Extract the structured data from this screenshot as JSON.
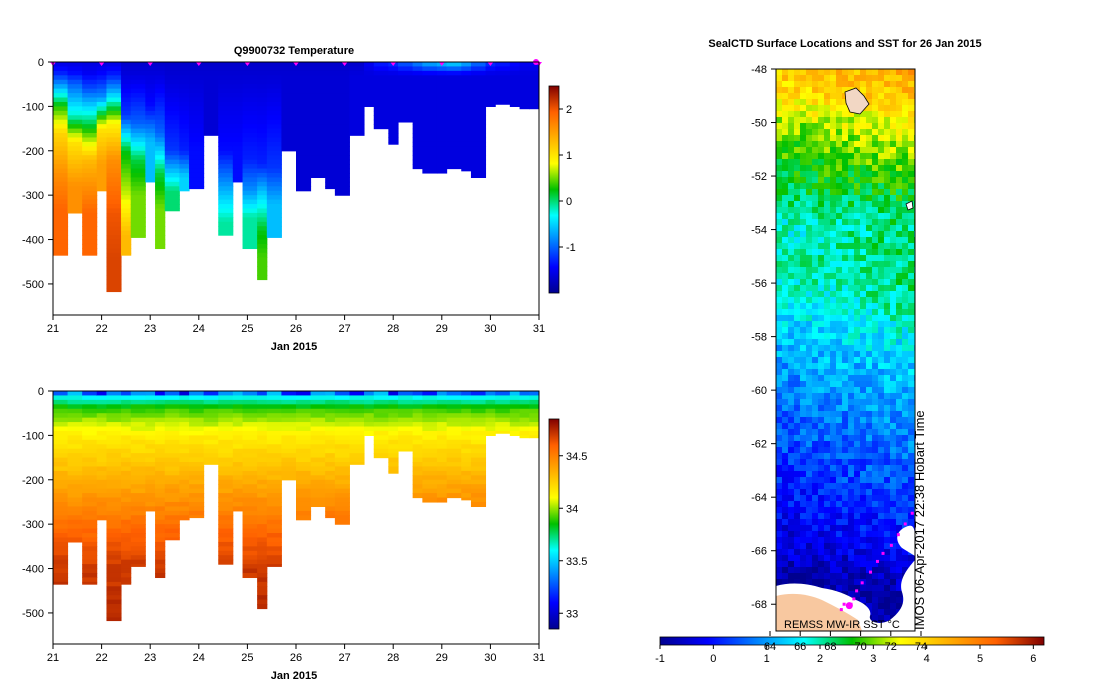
{
  "chart_data": [
    {
      "id": "temperature",
      "type": "heatmap",
      "title": "Q9900732  Temperature",
      "xlabel": "Jan 2015",
      "xticks": [
        "21",
        "22",
        "23",
        "24",
        "25",
        "26",
        "27",
        "28",
        "29",
        "30",
        "31"
      ],
      "xlim": [
        21,
        31
      ],
      "yticks": [
        "0",
        "-100",
        "-200",
        "-300",
        "-400",
        "-500"
      ],
      "ylim": [
        -570,
        0
      ],
      "colorbar": {
        "ticks": [
          "2",
          "1",
          "0",
          "-1"
        ],
        "range": [
          -2,
          2.5
        ]
      },
      "profiles": [
        {
          "x": 21.0,
          "depth": 435,
          "layers": [
            [
              0,
              -1.6
            ],
            [
              25,
              -1.3
            ],
            [
              50,
              -0.8
            ],
            [
              100,
              0.3
            ],
            [
              160,
              1.1
            ],
            [
              250,
              1.6
            ],
            [
              330,
              1.9
            ]
          ]
        },
        {
          "x": 21.3,
          "depth": 340,
          "layers": [
            [
              0,
              -1.6
            ],
            [
              25,
              -1.4
            ],
            [
              50,
              -1.0
            ],
            [
              120,
              -0.2
            ],
            [
              180,
              1.0
            ],
            [
              280,
              1.6
            ]
          ]
        },
        {
          "x": 21.6,
          "depth": 435,
          "layers": [
            [
              0,
              -1.6
            ],
            [
              25,
              -1.5
            ],
            [
              60,
              -1.1
            ],
            [
              140,
              0.1
            ],
            [
              220,
              1.3
            ],
            [
              340,
              1.9
            ]
          ]
        },
        {
          "x": 21.9,
          "depth": 290,
          "layers": [
            [
              0,
              -1.6
            ],
            [
              30,
              -1.4
            ],
            [
              80,
              -0.8
            ],
            [
              150,
              1.0
            ],
            [
              230,
              1.5
            ]
          ]
        },
        {
          "x": 22.1,
          "depth": 517,
          "layers": [
            [
              0,
              -1.6
            ],
            [
              30,
              -1.3
            ],
            [
              70,
              -0.6
            ],
            [
              140,
              0.9
            ],
            [
              220,
              1.6
            ],
            [
              340,
              2.0
            ],
            [
              440,
              2.1
            ]
          ]
        },
        {
          "x": 22.4,
          "depth": 435,
          "layers": [
            [
              0,
              -1.7
            ],
            [
              30,
              -1.6
            ],
            [
              120,
              -1.2
            ],
            [
              200,
              0.2
            ],
            [
              300,
              0.7
            ],
            [
              390,
              1.3
            ]
          ]
        },
        {
          "x": 22.6,
          "depth": 395,
          "layers": [
            [
              0,
              -1.7
            ],
            [
              30,
              -1.6
            ],
            [
              140,
              -1.0
            ],
            [
              220,
              0.1
            ],
            [
              300,
              0.5
            ]
          ]
        },
        {
          "x": 22.9,
          "depth": 270,
          "layers": [
            [
              0,
              -1.7
            ],
            [
              30,
              -1.6
            ],
            [
              100,
              -1.4
            ],
            [
              180,
              -0.6
            ]
          ]
        },
        {
          "x": 23.1,
          "depth": 420,
          "layers": [
            [
              0,
              -1.7
            ],
            [
              30,
              -1.6
            ],
            [
              160,
              -1.0
            ],
            [
              250,
              0.1
            ],
            [
              330,
              0.5
            ]
          ]
        },
        {
          "x": 23.3,
          "depth": 335,
          "layers": [
            [
              0,
              -1.7
            ],
            [
              30,
              -1.65
            ],
            [
              200,
              -1.2
            ],
            [
              290,
              0.0
            ]
          ]
        },
        {
          "x": 23.6,
          "depth": 290,
          "layers": [
            [
              0,
              -1.7
            ],
            [
              30,
              -1.65
            ],
            [
              200,
              -1.3
            ],
            [
              260,
              -0.5
            ]
          ]
        },
        {
          "x": 23.8,
          "depth": 285,
          "layers": [
            [
              0,
              -1.7
            ],
            [
              30,
              -1.65
            ],
            [
              200,
              -1.4
            ]
          ]
        },
        {
          "x": 24.1,
          "depth": 165,
          "layers": [
            [
              0,
              -1.7
            ],
            [
              30,
              -1.65
            ]
          ]
        },
        {
          "x": 24.4,
          "depth": 390,
          "layers": [
            [
              0,
              -1.7
            ],
            [
              30,
              -1.65
            ],
            [
              200,
              -1.4
            ],
            [
              320,
              -0.4
            ],
            [
              360,
              -0.1
            ]
          ]
        },
        {
          "x": 24.7,
          "depth": 270,
          "layers": [
            [
              0,
              -1.7
            ],
            [
              30,
              -1.65
            ],
            [
              200,
              -1.4
            ]
          ]
        },
        {
          "x": 24.9,
          "depth": 420,
          "layers": [
            [
              0,
              -1.7
            ],
            [
              30,
              -1.65
            ],
            [
              220,
              -1.3
            ],
            [
              290,
              -0.8
            ],
            [
              350,
              -0.1
            ]
          ]
        },
        {
          "x": 25.2,
          "depth": 490,
          "layers": [
            [
              0,
              -1.7
            ],
            [
              30,
              -1.65
            ],
            [
              230,
              -1.3
            ],
            [
              300,
              -0.5
            ],
            [
              380,
              0.2
            ],
            [
              440,
              0.4
            ]
          ]
        },
        {
          "x": 25.4,
          "depth": 395,
          "layers": [
            [
              0,
              -1.7
            ],
            [
              30,
              -1.65
            ],
            [
              240,
              -1.2
            ],
            [
              320,
              -0.6
            ]
          ]
        },
        {
          "x": 25.7,
          "depth": 200,
          "layers": [
            [
              0,
              -1.7
            ],
            [
              30,
              -1.65
            ]
          ]
        },
        {
          "x": 26.0,
          "depth": 290,
          "layers": [
            [
              0,
              -1.7
            ],
            [
              30,
              -1.65
            ]
          ]
        },
        {
          "x": 26.3,
          "depth": 260,
          "layers": [
            [
              0,
              -1.7
            ],
            [
              30,
              -1.65
            ]
          ]
        },
        {
          "x": 26.6,
          "depth": 285,
          "layers": [
            [
              0,
              -1.7
            ],
            [
              30,
              -1.65
            ]
          ]
        },
        {
          "x": 26.8,
          "depth": 300,
          "layers": [
            [
              0,
              -1.7
            ],
            [
              30,
              -1.65
            ]
          ]
        },
        {
          "x": 27.1,
          "depth": 165,
          "layers": [
            [
              0,
              -1.7
            ],
            [
              30,
              -1.6
            ]
          ]
        },
        {
          "x": 27.4,
          "depth": 100,
          "layers": [
            [
              0,
              -1.5
            ],
            [
              30,
              -1.6
            ]
          ]
        },
        {
          "x": 27.6,
          "depth": 150,
          "layers": [
            [
              0,
              -1.3
            ],
            [
              30,
              -1.6
            ]
          ]
        },
        {
          "x": 27.9,
          "depth": 185,
          "layers": [
            [
              0,
              -1.2
            ],
            [
              30,
              -1.6
            ]
          ]
        },
        {
          "x": 28.1,
          "depth": 135,
          "layers": [
            [
              0,
              -1.0
            ],
            [
              30,
              -1.6
            ]
          ]
        },
        {
          "x": 28.4,
          "depth": 240,
          "layers": [
            [
              0,
              -0.8
            ],
            [
              30,
              -1.6
            ]
          ]
        },
        {
          "x": 28.6,
          "depth": 250,
          "layers": [
            [
              0,
              -0.6
            ],
            [
              30,
              -1.6
            ]
          ]
        },
        {
          "x": 28.9,
          "depth": 250,
          "layers": [
            [
              0,
              -0.5
            ],
            [
              30,
              -1.6
            ]
          ]
        },
        {
          "x": 29.1,
          "depth": 240,
          "layers": [
            [
              0,
              -0.4
            ],
            [
              30,
              -1.6
            ]
          ]
        },
        {
          "x": 29.4,
          "depth": 245,
          "layers": [
            [
              0,
              -0.6
            ],
            [
              30,
              -1.6
            ]
          ]
        },
        {
          "x": 29.6,
          "depth": 260,
          "layers": [
            [
              0,
              -0.9
            ],
            [
              30,
              -1.6
            ]
          ]
        },
        {
          "x": 29.9,
          "depth": 100,
          "layers": [
            [
              0,
              -1.2
            ],
            [
              30,
              -1.6
            ]
          ]
        },
        {
          "x": 30.1,
          "depth": 95,
          "layers": [
            [
              0,
              -1.3
            ],
            [
              30,
              -1.6
            ]
          ]
        },
        {
          "x": 30.4,
          "depth": 100,
          "layers": [
            [
              0,
              -1.4
            ],
            [
              30,
              -1.6
            ]
          ]
        },
        {
          "x": 30.6,
          "depth": 105,
          "layers": [
            [
              0,
              -1.5
            ],
            [
              30,
              -1.6
            ]
          ]
        },
        {
          "x": 30.8,
          "depth": 105,
          "layers": [
            [
              0,
              -1.5
            ],
            [
              30,
              -1.6
            ]
          ]
        }
      ]
    },
    {
      "id": "salinity",
      "type": "heatmap",
      "xlabel": "Jan 2015",
      "xticks": [
        "21",
        "22",
        "23",
        "24",
        "25",
        "26",
        "27",
        "28",
        "29",
        "30",
        "31"
      ],
      "xlim": [
        21,
        31
      ],
      "yticks": [
        "0",
        "-100",
        "-200",
        "-300",
        "-400",
        "-500"
      ],
      "ylim": [
        -570,
        0
      ],
      "colorbar": {
        "ticks": [
          "34.5",
          "34",
          "33.5",
          "33"
        ],
        "range": [
          32.85,
          34.85
        ]
      },
      "surface_range": [
        33.0,
        33.5
      ],
      "layers": [
        [
          40,
          33.9
        ],
        [
          100,
          34.15
        ],
        [
          200,
          34.35
        ],
        [
          300,
          34.55
        ],
        [
          400,
          34.7
        ],
        [
          520,
          34.75
        ]
      ]
    },
    {
      "id": "sst-map",
      "type": "heatmap",
      "title": "SealCTD Surface Locations and SST for 26 Jan 2015",
      "ylabel": "",
      "yticks": [
        "-48",
        "-50",
        "-52",
        "-54",
        "-56",
        "-58",
        "-60",
        "-62",
        "-64",
        "-66",
        "-68"
      ],
      "ylim": [
        -69,
        -48
      ],
      "lonticks": [
        "64",
        "66",
        "68",
        "70",
        "72",
        "74"
      ],
      "colorbar": {
        "ticks": [
          "-1",
          "0",
          "1",
          "2",
          "3",
          "4",
          "5",
          "6"
        ],
        "range": [
          -1,
          6.2
        ]
      },
      "legend_label": "REMSS MW-IR SST °C",
      "watermark": "IMOS 06-Apr-2017 22:38 Hobart Time",
      "sst_profile": [
        [
          -48,
          4.3
        ],
        [
          -49,
          4.0
        ],
        [
          -50,
          3.3
        ],
        [
          -51,
          3.0
        ],
        [
          -52,
          2.6
        ],
        [
          -53,
          2.3
        ],
        [
          -54,
          2.0
        ],
        [
          -55,
          2.1
        ],
        [
          -56,
          2.0
        ],
        [
          -57,
          1.8
        ],
        [
          -58,
          1.5
        ],
        [
          -59,
          1.2
        ],
        [
          -60,
          1.0
        ],
        [
          -61,
          0.8
        ],
        [
          -62,
          0.6
        ],
        [
          -63,
          0.4
        ],
        [
          -64,
          0.2
        ],
        [
          -65,
          0.0
        ],
        [
          -66,
          -0.3
        ],
        [
          -67,
          -0.7
        ],
        [
          -68,
          -0.9
        ],
        [
          -69,
          -1.0
        ]
      ],
      "track": [
        [
          0.98,
          -64.6
        ],
        [
          0.93,
          -65.0
        ],
        [
          0.88,
          -65.4
        ],
        [
          0.83,
          -65.8
        ],
        [
          0.77,
          -66.1
        ],
        [
          0.73,
          -66.4
        ],
        [
          0.68,
          -66.8
        ],
        [
          0.62,
          -67.2
        ],
        [
          0.58,
          -67.5
        ],
        [
          0.56,
          -67.8
        ],
        [
          0.54,
          -68.0
        ],
        [
          0.49,
          -68.0
        ],
        [
          0.47,
          -68.2
        ]
      ]
    }
  ]
}
